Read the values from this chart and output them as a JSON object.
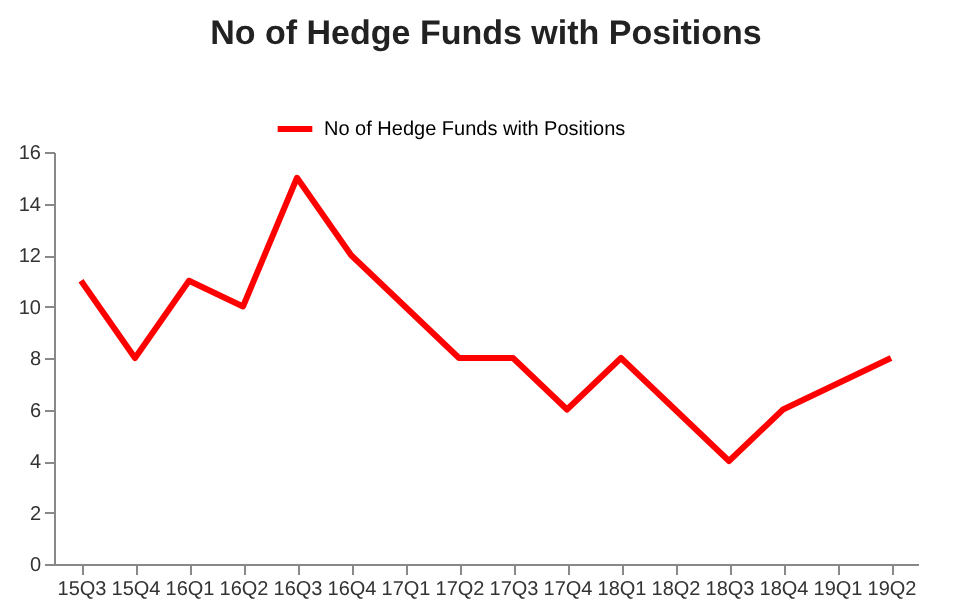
{
  "chart_data": {
    "type": "line",
    "title": "No of Hedge Funds with Positions",
    "categories": [
      "15Q3",
      "15Q4",
      "16Q1",
      "16Q2",
      "16Q3",
      "16Q4",
      "17Q1",
      "17Q2",
      "17Q3",
      "17Q4",
      "18Q1",
      "18Q2",
      "18Q3",
      "18Q4",
      "19Q1",
      "19Q2"
    ],
    "series": [
      {
        "name": "No of Hedge Funds with Positions",
        "color": "#ff0000",
        "values": [
          11,
          8,
          11,
          10,
          15,
          12,
          10,
          8,
          8,
          6,
          8,
          6,
          4,
          6,
          7,
          8
        ]
      }
    ],
    "ylim": [
      0,
      16
    ],
    "yticks": [
      0,
      2,
      4,
      6,
      8,
      10,
      12,
      14,
      16
    ],
    "legend": "top",
    "grid": false,
    "marker": "none",
    "line_style": "solid"
  }
}
